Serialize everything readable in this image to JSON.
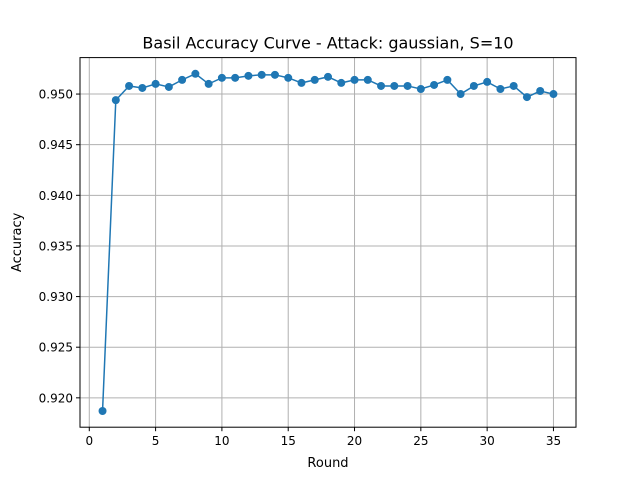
{
  "chart_data": {
    "type": "line",
    "title": "Basil Accuracy Curve - Attack: gaussian, S=10",
    "xlabel": "Round",
    "ylabel": "Accuracy",
    "xlim": [
      -0.7,
      36.7
    ],
    "ylim": [
      0.9171,
      0.9536
    ],
    "xticks": [
      0,
      5,
      10,
      15,
      20,
      25,
      30,
      35
    ],
    "yticks": [
      0.92,
      0.925,
      0.93,
      0.935,
      0.94,
      0.945,
      0.95
    ],
    "ytick_labels": [
      "0.920",
      "0.925",
      "0.930",
      "0.935",
      "0.940",
      "0.945",
      "0.950"
    ],
    "grid": true,
    "legend": "none",
    "series": [
      {
        "color": "#1f77b4",
        "marker": "circle",
        "x": [
          1,
          2,
          3,
          4,
          5,
          6,
          7,
          8,
          9,
          10,
          11,
          12,
          13,
          14,
          15,
          16,
          17,
          18,
          19,
          20,
          21,
          22,
          23,
          24,
          25,
          26,
          27,
          28,
          29,
          30,
          31,
          32,
          33,
          34,
          35
        ],
        "y": [
          0.9187,
          0.9494,
          0.9508,
          0.9506,
          0.951,
          0.9507,
          0.9514,
          0.952,
          0.951,
          0.9516,
          0.9516,
          0.9518,
          0.9519,
          0.9519,
          0.9516,
          0.9511,
          0.9514,
          0.9517,
          0.9511,
          0.9514,
          0.9514,
          0.9508,
          0.9508,
          0.9508,
          0.9505,
          0.9509,
          0.9514,
          0.95,
          0.9508,
          0.9512,
          0.9505,
          0.9508,
          0.9497,
          0.9503,
          0.95
        ]
      }
    ]
  }
}
